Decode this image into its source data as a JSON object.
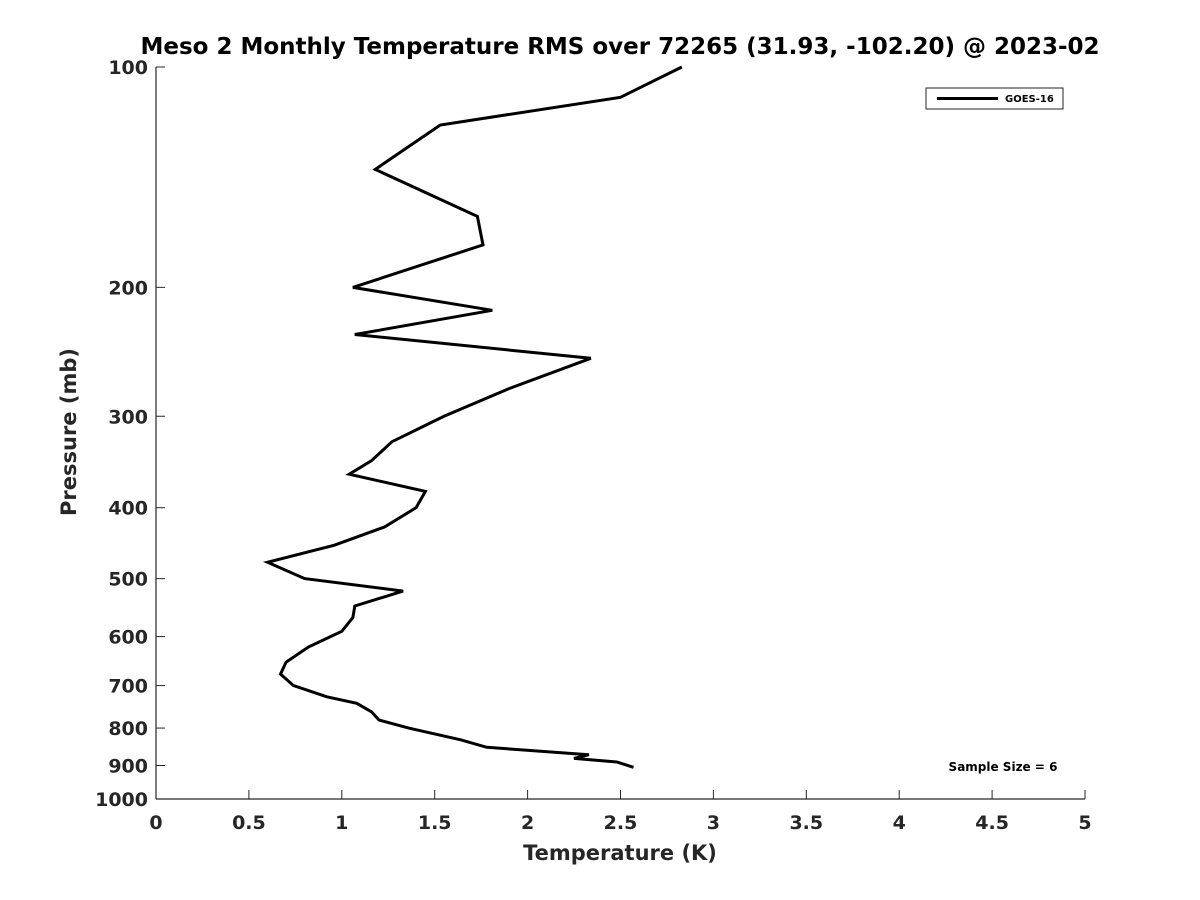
{
  "chart_data": {
    "type": "line",
    "title": "Meso 2 Monthly Temperature RMS over 72265 (31.93, -102.20) @ 2023-02",
    "xlabel": "Temperature (K)",
    "ylabel": "Pressure (mb)",
    "xlim": [
      0,
      5
    ],
    "ylim": [
      100,
      1000
    ],
    "y_scale": "log",
    "y_reversed": true,
    "x_ticks": [
      0,
      0.5,
      1,
      1.5,
      2,
      2.5,
      3,
      3.5,
      4,
      4.5,
      5
    ],
    "x_tick_labels": [
      "0",
      "0.5",
      "1",
      "1.5",
      "2",
      "2.5",
      "3",
      "3.5",
      "4",
      "4.5",
      "5"
    ],
    "y_ticks": [
      100,
      200,
      300,
      400,
      500,
      600,
      700,
      800,
      900,
      1000
    ],
    "y_tick_labels": [
      "100",
      "200",
      "300",
      "400",
      "500",
      "600",
      "700",
      "800",
      "900",
      "1000"
    ],
    "grid": false,
    "legend_position": "top-right",
    "annotation": "Sample Size = 6",
    "series": [
      {
        "name": "GOES-16",
        "color": "#000000",
        "x": [
          2.83,
          2.5,
          1.53,
          1.18,
          1.73,
          1.76,
          1.06,
          1.81,
          1.07,
          2.34,
          1.9,
          1.55,
          1.27,
          1.16,
          1.04,
          1.45,
          1.4,
          1.23,
          0.96,
          0.6,
          0.8,
          1.33,
          1.07,
          1.06,
          1.0,
          0.82,
          0.7,
          0.67,
          0.74,
          0.92,
          1.08,
          1.16,
          1.2,
          1.36,
          1.64,
          1.78,
          2.33,
          2.25,
          2.48,
          2.57
        ],
        "y": [
          100,
          110,
          120,
          138,
          160,
          175,
          200,
          215,
          232,
          250,
          275,
          300,
          325,
          345,
          360,
          380,
          400,
          425,
          450,
          475,
          500,
          520,
          545,
          565,
          590,
          620,
          650,
          675,
          700,
          725,
          740,
          760,
          780,
          800,
          830,
          850,
          870,
          880,
          890,
          905
        ]
      }
    ]
  }
}
